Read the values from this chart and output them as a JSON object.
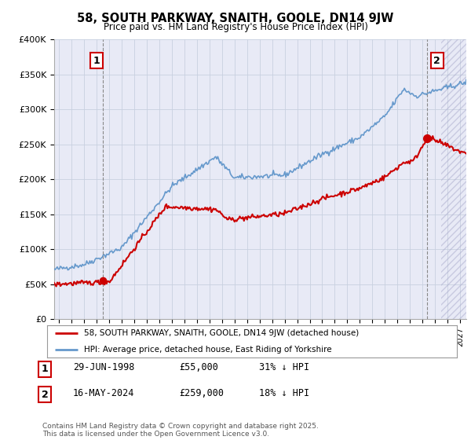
{
  "title": "58, SOUTH PARKWAY, SNAITH, GOOLE, DN14 9JW",
  "subtitle": "Price paid vs. HM Land Registry's House Price Index (HPI)",
  "red_line_label": "58, SOUTH PARKWAY, SNAITH, GOOLE, DN14 9JW (detached house)",
  "blue_line_label": "HPI: Average price, detached house, East Riding of Yorkshire",
  "point1_label": "1",
  "point1_date": "29-JUN-1998",
  "point1_price": "£55,000",
  "point1_hpi": "31% ↓ HPI",
  "point2_label": "2",
  "point2_date": "16-MAY-2024",
  "point2_price": "£259,000",
  "point2_hpi": "18% ↓ HPI",
  "footer": "Contains HM Land Registry data © Crown copyright and database right 2025.\nThis data is licensed under the Open Government Licence v3.0.",
  "ylim": [
    0,
    400000
  ],
  "yticks": [
    0,
    50000,
    100000,
    150000,
    200000,
    250000,
    300000,
    350000,
    400000
  ],
  "ytick_labels": [
    "£0",
    "£50K",
    "£100K",
    "£150K",
    "£200K",
    "£250K",
    "£300K",
    "£350K",
    "£400K"
  ],
  "xlim_start": 1994.6,
  "xlim_end": 2027.5,
  "red_color": "#cc0000",
  "blue_color": "#6699cc",
  "point1_x": 1998.49,
  "point1_y": 55000,
  "point2_x": 2024.37,
  "point2_y": 259000,
  "point1_vline_x": 1998.49,
  "point2_vline_x": 2024.37,
  "bg_color": "#ffffff",
  "grid_color": "#c8d0e0",
  "plot_bg": "#e8eaf6"
}
